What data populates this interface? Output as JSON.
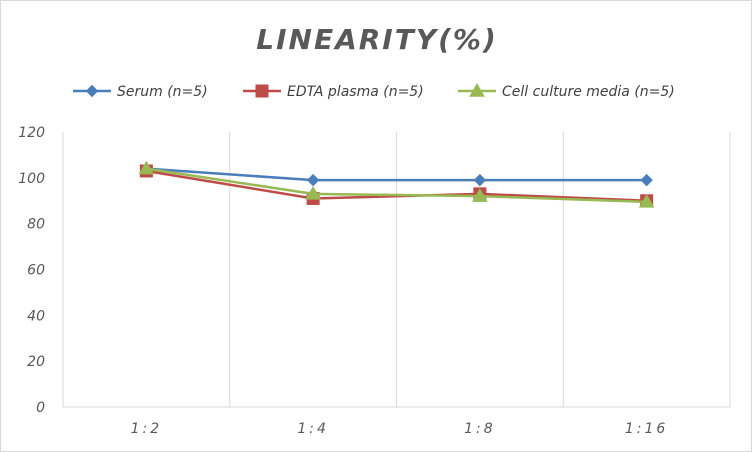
{
  "chart_data": {
    "type": "line",
    "title": "LINEARITY(%)",
    "xlabel": "",
    "ylabel": "",
    "categories": [
      "1:2",
      "1:4",
      "1:8",
      "1:16"
    ],
    "ylim": [
      0,
      120
    ],
    "yticks": [
      0,
      20,
      40,
      60,
      80,
      100,
      120
    ],
    "grid": "vertical",
    "legend_position": "top",
    "series": [
      {
        "name": "Serum (n=5)",
        "values": [
          104,
          99,
          99,
          99
        ],
        "color": "#4a7ebb",
        "marker": "diamond"
      },
      {
        "name": "EDTA plasma (n=5)",
        "values": [
          103,
          91,
          93,
          90
        ],
        "color": "#be4b48",
        "marker": "square"
      },
      {
        "name": "Cell culture media (n=5)",
        "values": [
          104,
          93,
          92,
          89.5
        ],
        "color": "#98b954",
        "marker": "triangle"
      }
    ]
  }
}
